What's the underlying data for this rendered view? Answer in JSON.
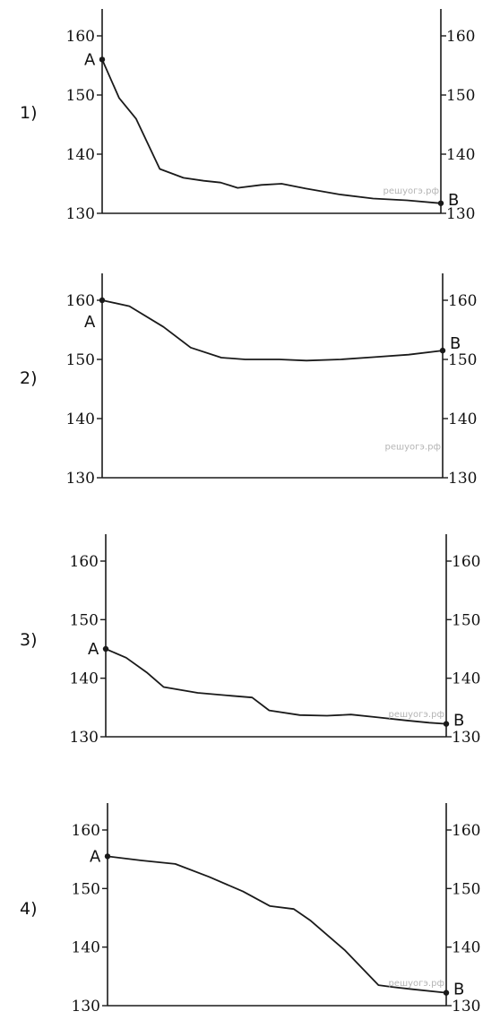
{
  "watermark": "решуогэ.рф",
  "chart_data": [
    {
      "type": "line",
      "option": "1)",
      "yticks": [
        130,
        140,
        150,
        160
      ],
      "ylim": [
        130,
        162
      ],
      "xlim": [
        0,
        100
      ],
      "start_label": "A",
      "end_label": "B",
      "x": [
        0,
        5,
        10,
        17,
        24,
        30,
        35,
        40,
        47,
        53,
        60,
        70,
        80,
        90,
        100
      ],
      "y": [
        156,
        149.5,
        146,
        137.5,
        136,
        135.5,
        135.2,
        134.3,
        134.8,
        135,
        134.2,
        133.2,
        132.5,
        132.2,
        131.7
      ],
      "grid": false
    },
    {
      "type": "line",
      "option": "2)",
      "yticks": [
        130,
        140,
        150,
        160
      ],
      "ylim": [
        130,
        162
      ],
      "xlim": [
        0,
        100
      ],
      "start_label": "A",
      "end_label": "B",
      "x": [
        0,
        8,
        18,
        26,
        35,
        42,
        52,
        60,
        70,
        80,
        90,
        100
      ],
      "y": [
        160,
        159,
        155.5,
        152,
        150.3,
        150,
        150,
        149.8,
        150,
        150.4,
        150.8,
        151.5
      ],
      "grid": false
    },
    {
      "type": "line",
      "option": "3)",
      "yticks": [
        130,
        140,
        150,
        160
      ],
      "ylim": [
        130,
        162
      ],
      "xlim": [
        0,
        100
      ],
      "start_label": "A",
      "end_label": "B",
      "x": [
        0,
        6,
        12,
        17,
        27,
        37,
        43,
        48,
        57,
        65,
        72,
        80,
        88,
        95,
        100
      ],
      "y": [
        145,
        143.5,
        141,
        138.5,
        137.5,
        137,
        136.7,
        134.5,
        133.7,
        133.6,
        133.8,
        133.3,
        132.8,
        132.4,
        132.2
      ],
      "grid": false
    },
    {
      "type": "line",
      "option": "4)",
      "yticks": [
        130,
        140,
        150,
        160
      ],
      "ylim": [
        130,
        162
      ],
      "xlim": [
        0,
        100
      ],
      "start_label": "A",
      "end_label": "B",
      "x": [
        0,
        10,
        20,
        30,
        40,
        48,
        55,
        60,
        70,
        80,
        84,
        90,
        100
      ],
      "y": [
        155.5,
        154.8,
        154.2,
        152,
        149.5,
        147,
        146.5,
        144.5,
        139.5,
        133.5,
        133.2,
        132.8,
        132.2
      ],
      "grid": false
    }
  ]
}
